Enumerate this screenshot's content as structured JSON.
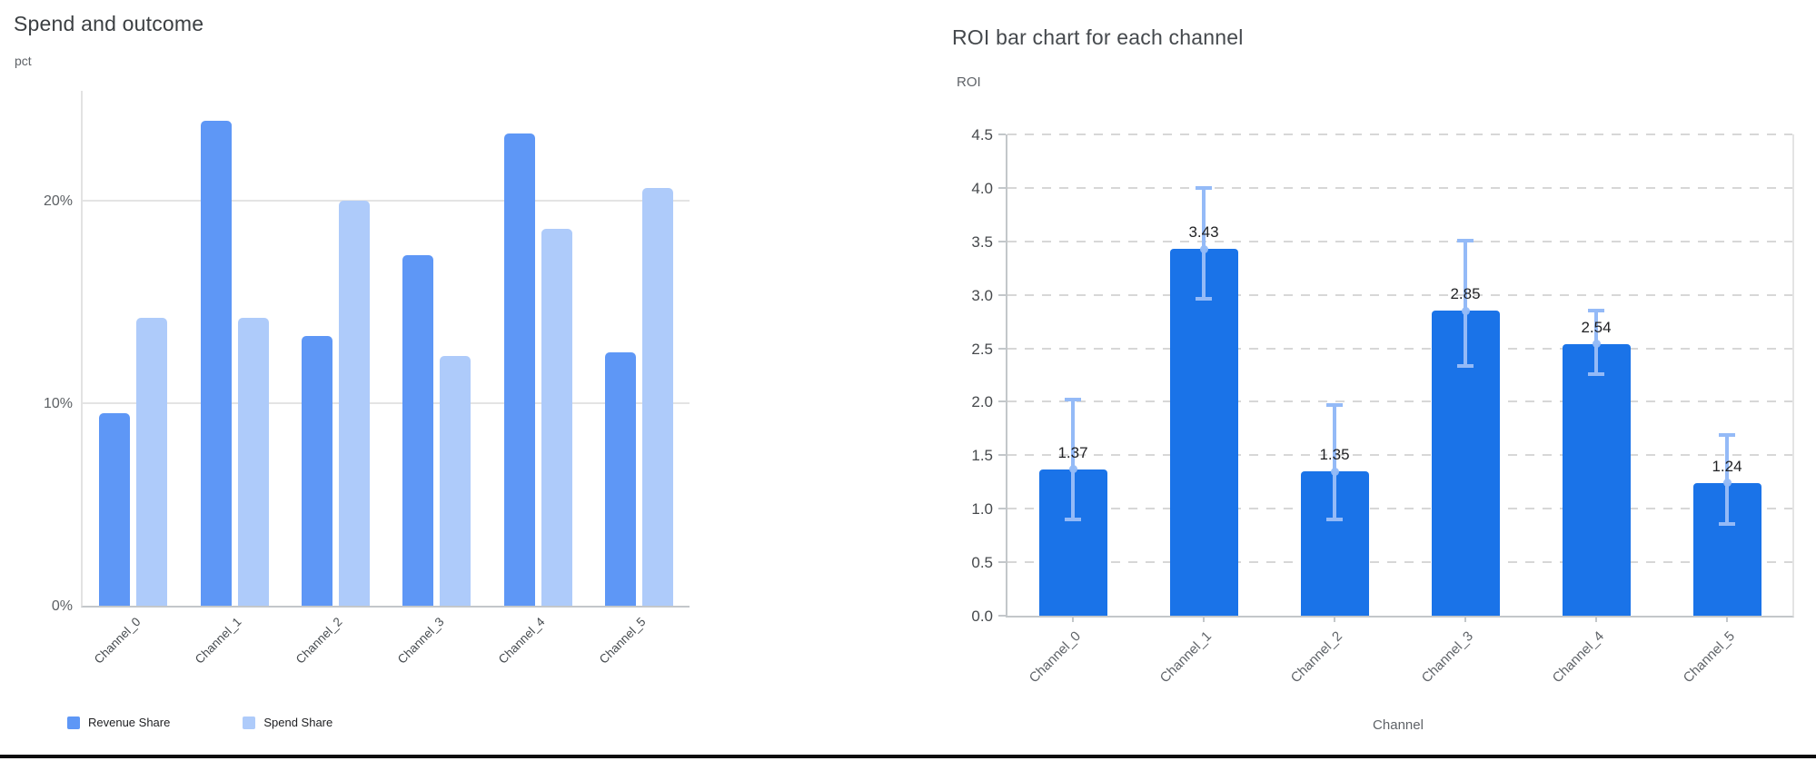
{
  "chart_data": [
    {
      "type": "bar",
      "title": "Spend and outcome",
      "ylabel": "pct",
      "xlabel": "",
      "categories": [
        "Channel_0",
        "Channel_1",
        "Channel_2",
        "Channel_3",
        "Channel_4",
        "Channel_5"
      ],
      "series": [
        {
          "name": "Revenue Share",
          "color": "#5e97f6",
          "values": [
            9.5,
            23.9,
            13.3,
            17.3,
            23.3,
            12.5
          ]
        },
        {
          "name": "Spend Share",
          "color": "#aecbfa",
          "values": [
            14.2,
            14.2,
            20.0,
            12.3,
            18.6,
            20.6
          ]
        }
      ],
      "ylim": [
        0,
        25.4
      ],
      "yticks": [
        {
          "value": 0,
          "label": "0%"
        },
        {
          "value": 10,
          "label": "10%"
        },
        {
          "value": 20,
          "label": "20%"
        }
      ],
      "grid": "solid",
      "legend_position": "bottom"
    },
    {
      "type": "bar",
      "title": "ROI bar chart for each channel",
      "ylabel": "ROI",
      "xlabel": "Channel",
      "categories": [
        "Channel_0",
        "Channel_1",
        "Channel_2",
        "Channel_3",
        "Channel_4",
        "Channel_5"
      ],
      "series": [
        {
          "name": "ROI",
          "color": "#1a73e8",
          "values": [
            1.37,
            3.43,
            1.35,
            2.85,
            2.54,
            1.24
          ]
        }
      ],
      "data_labels": [
        "1.37",
        "3.43",
        "1.35",
        "2.85",
        "2.54",
        "1.24"
      ],
      "error_bars": {
        "color": "#94baf7",
        "low": [
          0.88,
          2.95,
          0.88,
          2.32,
          2.24,
          0.84
        ],
        "high": [
          2.04,
          4.02,
          1.99,
          3.52,
          2.87,
          1.71
        ]
      },
      "ylim": [
        0,
        4.5
      ],
      "ytick_step": 0.5,
      "ytick_labels": [
        "0.0",
        "0.5",
        "1.0",
        "1.5",
        "2.0",
        "2.5",
        "3.0",
        "3.5",
        "4.0",
        "4.5"
      ],
      "grid": "dashed",
      "legend_position": "none"
    }
  ]
}
